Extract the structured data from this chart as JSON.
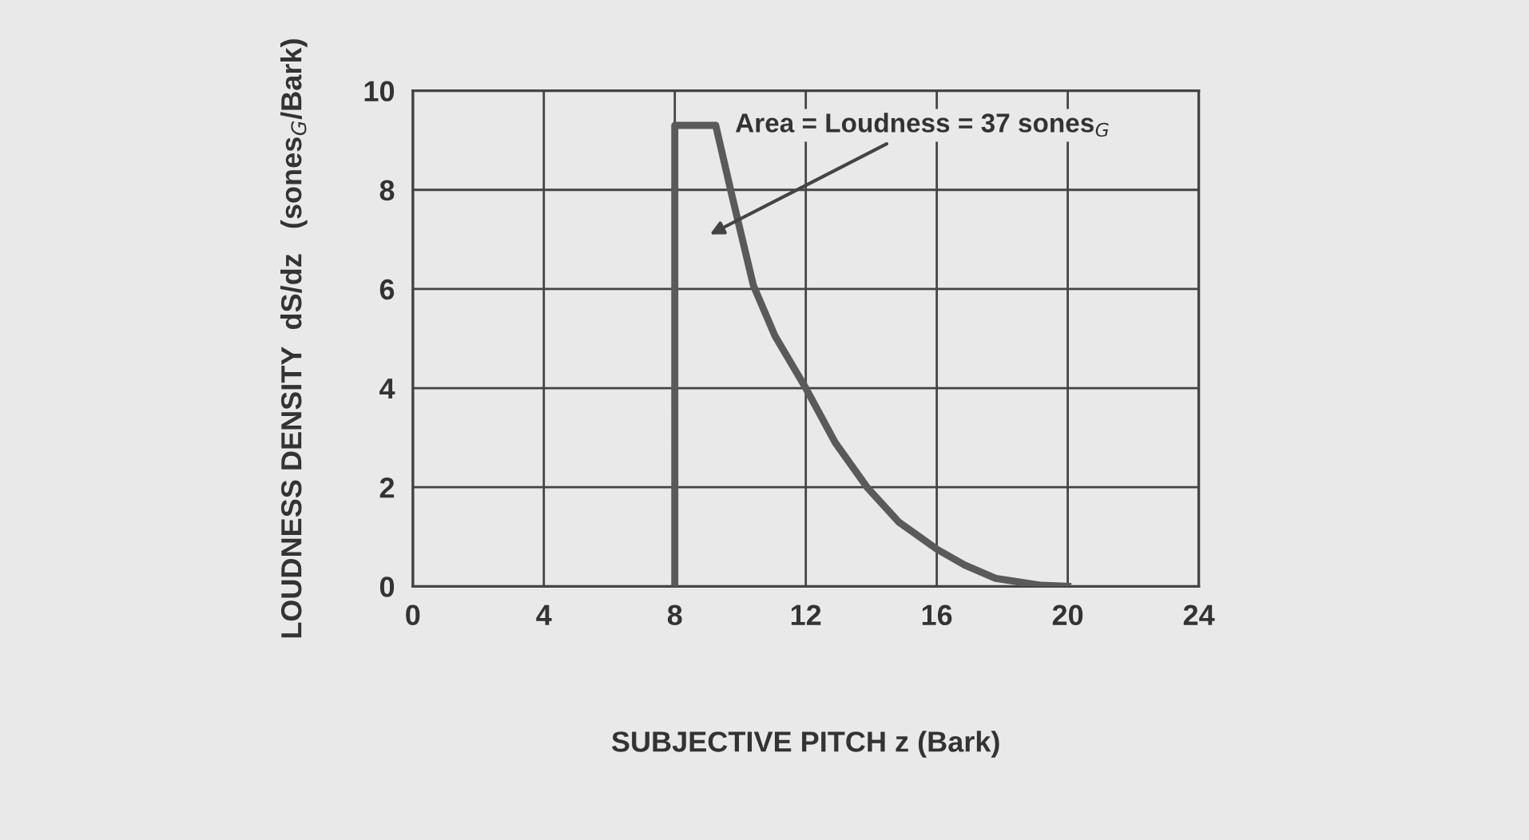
{
  "chart_data": {
    "type": "line",
    "xlabel": "SUBJECTIVE PITCH z (Bark)",
    "ylabel": "LOUDNESS DENSITY  dS/dz   (sones$_{G}$/Bark)",
    "annotations": [
      "Area = Loudness = 37 sones$_{G}$"
    ],
    "series": [
      {
        "color": "#5a5a5a",
        "x": [
          8,
          8,
          9.25,
          9.74,
          10.4,
          11.06,
          12,
          12.9,
          13.87,
          14.85,
          16,
          16.85,
          17.8,
          19.2,
          20
        ],
        "values": [
          0,
          9.3,
          9.3,
          7.9,
          6.07,
          5.05,
          4,
          2.9,
          2.0,
          1.29,
          0.75,
          0.43,
          0.16,
          0.02,
          0
        ]
      }
    ],
    "xlim": [
      0,
      24
    ],
    "ylim": [
      0,
      10
    ],
    "xticks": [
      0,
      4,
      8,
      12,
      16,
      20,
      24
    ],
    "yticks": [
      0,
      2,
      4,
      6,
      8,
      10
    ],
    "grid": true,
    "line_style": "solid",
    "marker": "none"
  }
}
